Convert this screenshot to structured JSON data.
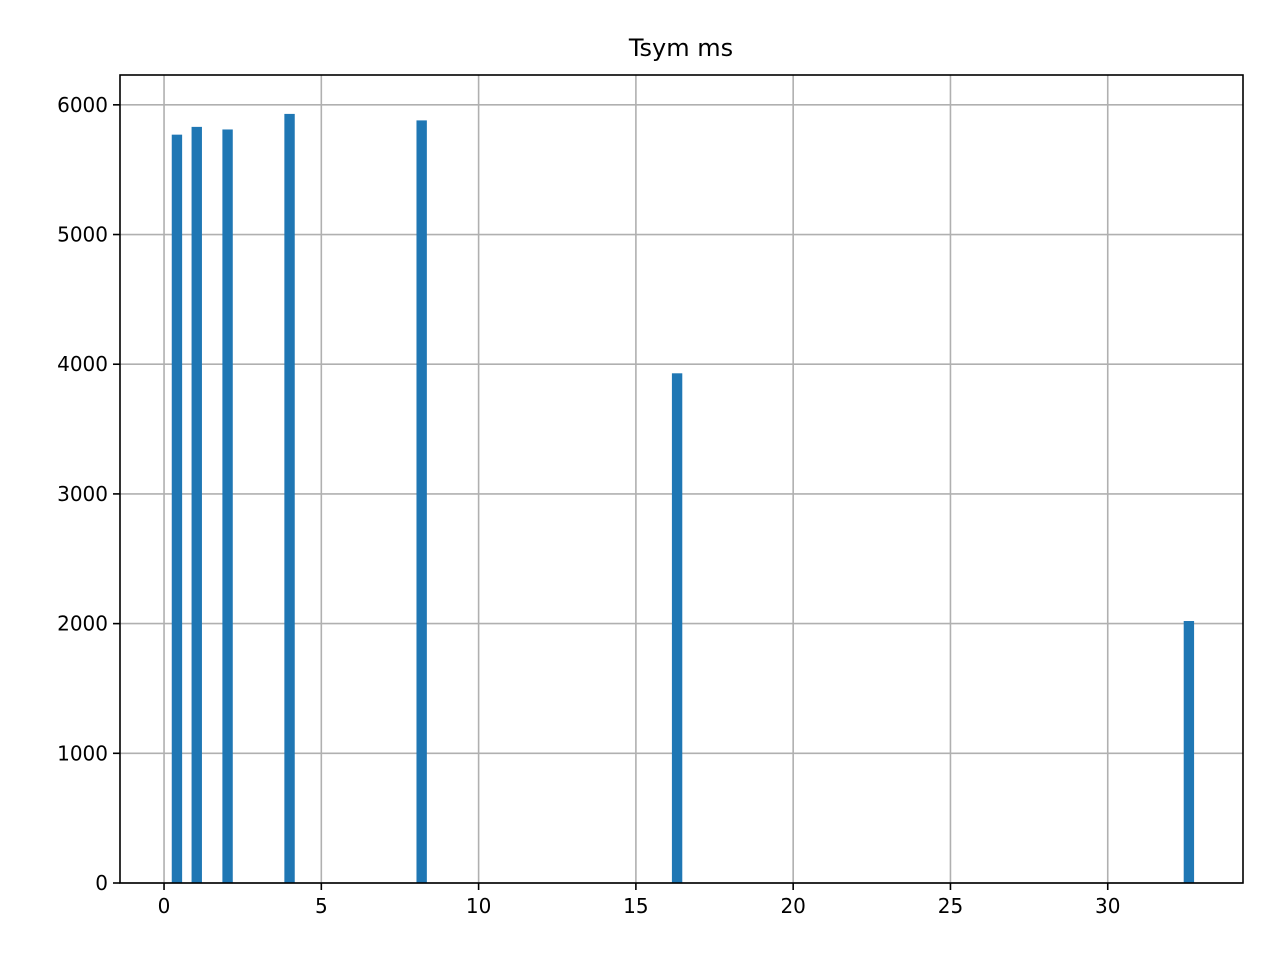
{
  "chart_data": {
    "type": "bar",
    "title": "Tsym ms",
    "xlabel": "",
    "ylabel": "",
    "xlim": [
      -1.4,
      34.3
    ],
    "ylim": [
      0,
      6230
    ],
    "grid": true,
    "bar_color": "#1f77b4",
    "bar_width": 0.33,
    "x_ticks": [
      0,
      5,
      10,
      15,
      20,
      25,
      30
    ],
    "x_tick_labels": [
      "0",
      "5",
      "10",
      "15",
      "20",
      "25",
      "30"
    ],
    "y_ticks": [
      0,
      1000,
      2000,
      3000,
      4000,
      5000,
      6000
    ],
    "y_tick_labels": [
      "0",
      "1000",
      "2000",
      "3000",
      "4000",
      "5000",
      "6000"
    ],
    "bars": [
      {
        "x": 0.41,
        "value": 5770
      },
      {
        "x": 1.04,
        "value": 5830
      },
      {
        "x": 2.02,
        "value": 5810
      },
      {
        "x": 3.99,
        "value": 5930
      },
      {
        "x": 8.19,
        "value": 5880
      },
      {
        "x": 16.31,
        "value": 3930
      },
      {
        "x": 32.58,
        "value": 2020
      }
    ]
  }
}
